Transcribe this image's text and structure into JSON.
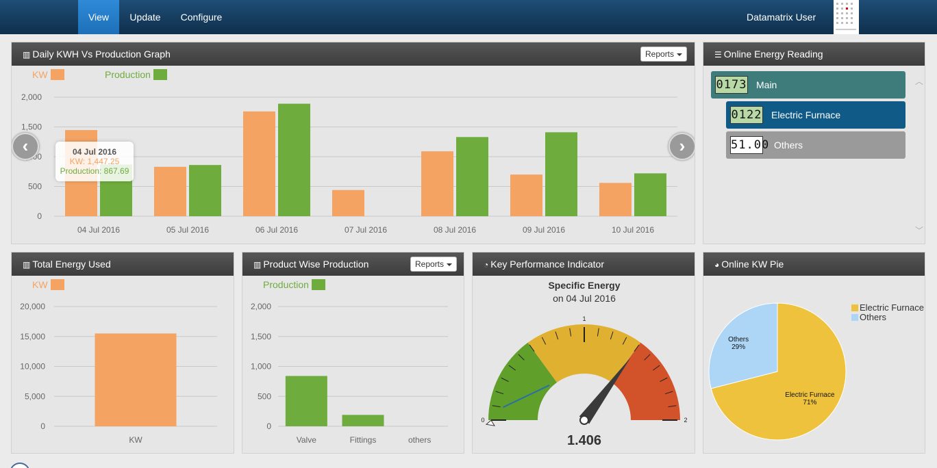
{
  "nav": {
    "items": [
      "View",
      "Update",
      "Configure"
    ],
    "user": "Datamatrix User"
  },
  "daily_panel": {
    "title": "Daily KWH Vs Production Graph",
    "reports_label": "Reports",
    "tooltip": {
      "date": "04 Jul 2016",
      "kw": "KW: 1,447.25",
      "production": "Production: 867.69"
    }
  },
  "online_panel": {
    "title": "Online Energy Reading",
    "readings": [
      {
        "lcd": "0173",
        "label": "Main"
      },
      {
        "lcd": "0122",
        "label": "Electric Furnace"
      },
      {
        "lcd": "51.00",
        "label": "Others"
      }
    ]
  },
  "total_panel": {
    "title": "Total Energy Used"
  },
  "product_panel": {
    "title": "Product Wise Production",
    "reports_label": "Reports"
  },
  "kpi_panel": {
    "title": "Key Performance Indicator",
    "heading": "Specific Energy",
    "subheading": "on 04 Jul 2016",
    "value_text": "1.406"
  },
  "pie_panel": {
    "title": "Online KW Pie"
  },
  "colors": {
    "kw": "#f5a363",
    "production": "#6eac3d",
    "furnace": "#eec23c",
    "others": "#add6f6"
  },
  "chart_data": [
    {
      "id": "daily",
      "type": "bar",
      "legend": [
        "KW",
        "Production"
      ],
      "categories": [
        "04 Jul 2016",
        "05 Jul 2016",
        "06 Jul 2016",
        "07 Jul 2016",
        "08 Jul 2016",
        "09 Jul 2016",
        "10 Jul 2016"
      ],
      "series": [
        {
          "name": "KW",
          "values": [
            1447.25,
            830,
            1760,
            440,
            1090,
            700,
            560
          ]
        },
        {
          "name": "Production",
          "values": [
            867.69,
            860,
            1890,
            0,
            1330,
            1410,
            720
          ]
        }
      ],
      "yticks": [
        "0",
        "500",
        "1,000",
        "1,500",
        "2,000"
      ],
      "ylim": [
        0,
        2000
      ]
    },
    {
      "id": "total",
      "type": "bar",
      "legend": [
        "KW"
      ],
      "categories": [
        "KW"
      ],
      "series": [
        {
          "name": "KW",
          "values": [
            15500
          ]
        }
      ],
      "yticks": [
        "0",
        "5,000",
        "10,000",
        "15,000",
        "20,000"
      ],
      "ylim": [
        0,
        20000
      ]
    },
    {
      "id": "product",
      "type": "bar",
      "legend": [
        "Production"
      ],
      "categories": [
        "Valve",
        "Fittings",
        "others"
      ],
      "series": [
        {
          "name": "Production",
          "values": [
            840,
            190,
            0
          ]
        }
      ],
      "yticks": [
        "0",
        "500",
        "1,000",
        "1,500",
        "2,000"
      ],
      "ylim": [
        0,
        2000
      ]
    },
    {
      "id": "kpi",
      "type": "gauge",
      "value": 1.406,
      "min": 0,
      "max": 2,
      "tick_labels": [
        "0",
        "1",
        "2"
      ],
      "marker": 0.05
    },
    {
      "id": "pie",
      "type": "pie",
      "slices": [
        {
          "name": "Electric Furnace",
          "value": 71,
          "label": "71%"
        },
        {
          "name": "Others",
          "value": 29,
          "label": "29%"
        }
      ]
    }
  ]
}
